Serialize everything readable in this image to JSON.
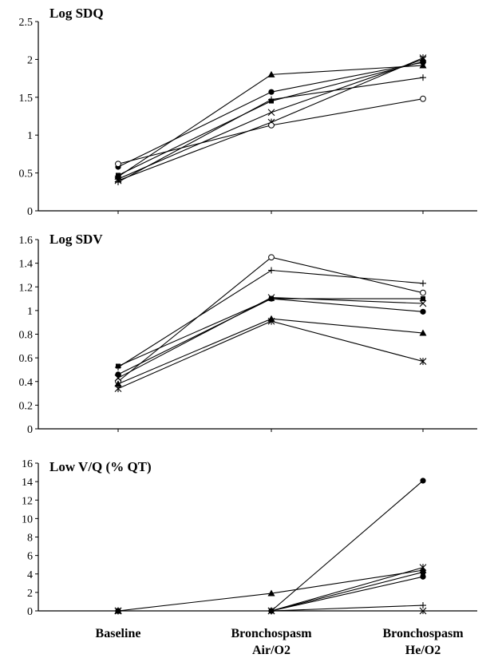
{
  "chart_data": {
    "type": "line",
    "categories": [
      "Baseline",
      "Bronchospasm\nAir/O2",
      "Bronchospasm\nHe/O2"
    ],
    "panels": [
      {
        "title": "Log SDQ",
        "ylim": [
          0,
          2.5
        ],
        "yticks": [
          0,
          0.5,
          1,
          1.5,
          2,
          2.5
        ],
        "ytick_labels": [
          "0",
          "0.5",
          "1",
          "1.5",
          "2",
          "2.5"
        ],
        "series": [
          {
            "marker": "triangle",
            "values": [
              0.45,
              1.8,
              1.92
            ]
          },
          {
            "marker": "circle-filled",
            "values": [
              0.58,
              1.57,
              1.96
            ]
          },
          {
            "marker": "plus",
            "values": [
              0.38,
              1.47,
              1.76
            ]
          },
          {
            "marker": "x",
            "values": [
              0.42,
              1.3,
              2.0
            ]
          },
          {
            "marker": "asterisk",
            "values": [
              0.4,
              1.17,
              2.02
            ]
          },
          {
            "marker": "circle-open",
            "values": [
              0.62,
              1.13,
              1.48
            ]
          },
          {
            "marker": "dot",
            "values": [
              0.47,
              1.45,
              1.97
            ]
          }
        ]
      },
      {
        "title": "Log SDV",
        "ylim": [
          0,
          1.6
        ],
        "yticks": [
          0,
          0.2,
          0.4,
          0.6,
          0.8,
          1,
          1.2,
          1.4,
          1.6
        ],
        "ytick_labels": [
          "0",
          "0.2",
          "0.4",
          "0.6",
          "0.8",
          "1",
          "1.2",
          "1.4",
          "1.6"
        ],
        "series": [
          {
            "marker": "circle-open",
            "values": [
              0.4,
              1.45,
              1.15
            ]
          },
          {
            "marker": "plus",
            "values": [
              0.52,
              1.34,
              1.23
            ]
          },
          {
            "marker": "circle-filled",
            "values": [
              0.46,
              1.1,
              0.99
            ]
          },
          {
            "marker": "x",
            "values": [
              0.43,
              1.11,
              1.06
            ]
          },
          {
            "marker": "dot",
            "values": [
              0.53,
              1.1,
              1.1
            ]
          },
          {
            "marker": "triangle",
            "values": [
              0.38,
              0.93,
              0.81
            ]
          },
          {
            "marker": "asterisk",
            "values": [
              0.34,
              0.91,
              0.57
            ]
          }
        ]
      },
      {
        "title": "Low V/Q (% QT)",
        "ylim": [
          0,
          16
        ],
        "yticks": [
          0,
          2,
          4,
          6,
          8,
          10,
          12,
          14,
          16
        ],
        "ytick_labels": [
          "0",
          "2",
          "4",
          "6",
          "8",
          "10",
          "12",
          "14",
          "16"
        ],
        "series": [
          {
            "marker": "circle-filled",
            "values": [
              0,
              0,
              14.1
            ]
          },
          {
            "marker": "asterisk",
            "values": [
              0,
              0,
              4.7
            ]
          },
          {
            "marker": "triangle",
            "values": [
              0,
              1.9,
              4.4
            ]
          },
          {
            "marker": "dot",
            "values": [
              0,
              0,
              4.2
            ]
          },
          {
            "marker": "circle-filled",
            "values": [
              0,
              0,
              3.7
            ]
          },
          {
            "marker": "plus",
            "values": [
              0,
              0,
              0.6
            ]
          },
          {
            "marker": "x",
            "values": [
              0,
              0,
              0.0
            ]
          }
        ]
      }
    ]
  }
}
